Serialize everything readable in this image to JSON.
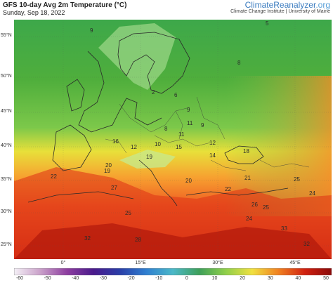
{
  "header": {
    "title": "GFS 10-day Avg 2m Temperature (°C)",
    "date": "Sunday, Sep 18, 2022",
    "brand_main": "ClimateReanalyzer",
    "brand_suffix": ".org",
    "brand_sub": "Climate Change Institute | University of Maine"
  },
  "axes": {
    "lat_labels": [
      "55°N",
      "50°N",
      "45°N",
      "40°N",
      "35°N",
      "30°N",
      "25°N"
    ],
    "lon_labels": [
      "0°",
      "15°E",
      "30°E",
      "45°E"
    ]
  },
  "colorbar": {
    "ticks": [
      "-60",
      "-50",
      "-40",
      "-30",
      "-20",
      "-10",
      "0",
      "10",
      "20",
      "30",
      "40",
      "50"
    ],
    "colors": [
      "#f4f0f6",
      "#c9a0c9",
      "#8e3ea0",
      "#4a1a8c",
      "#2a3ea8",
      "#2f7fd0",
      "#4bb8c8",
      "#3ea05a",
      "#8fcf4a",
      "#f0e040",
      "#f08020",
      "#d02010",
      "#8a0a0a"
    ]
  },
  "map_labels": [
    "5",
    "9",
    "2",
    "8",
    "6",
    "9",
    "11",
    "9",
    "8",
    "11",
    "10",
    "16",
    "12",
    "15",
    "12",
    "19",
    "14",
    "18",
    "20",
    "20",
    "22",
    "19",
    "21",
    "25",
    "27",
    "25",
    "24",
    "28",
    "32",
    "33",
    "32",
    "22",
    "26",
    "24",
    "25"
  ],
  "colors": {
    "sea_warm": "#f06a2a",
    "land_hot": "#c8200e",
    "land_temperate": "#4fae3c",
    "land_cool": "#3a9a4a",
    "mountain": "#9fd88a"
  }
}
